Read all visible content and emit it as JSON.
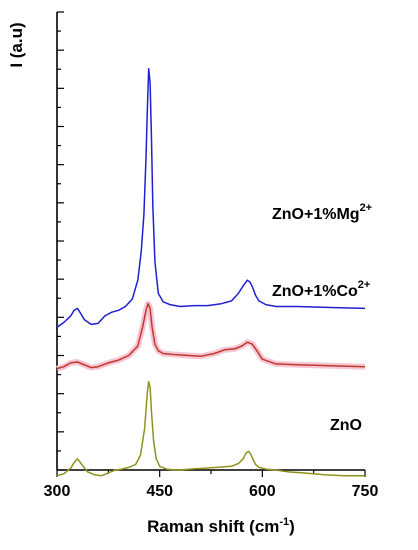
{
  "chart_data": {
    "type": "line",
    "title": "",
    "xlabel_main": "Raman shift (cm",
    "xlabel_sup": "-1",
    "xlabel_close": ")",
    "ylabel": "I (a.u)",
    "xlim": [
      300,
      750
    ],
    "x_ticks": [
      "300",
      "450",
      "600",
      "750"
    ],
    "x_tick_values": [
      300,
      450,
      600,
      750
    ],
    "grid": false,
    "legend": "none",
    "series": [
      {
        "name": "ZnO",
        "label_main": "ZnO",
        "label_sup": "",
        "color": "#8f931d",
        "x": [
          300,
          310,
          320,
          325,
          330,
          335,
          345,
          355,
          365,
          375,
          385,
          395,
          405,
          415,
          422,
          428,
          432,
          434,
          436,
          438,
          441,
          445,
          450,
          460,
          475,
          495,
          515,
          535,
          555,
          565,
          572,
          576,
          580,
          583,
          586,
          590,
          595,
          605,
          620,
          640,
          660,
          690,
          720,
          750
        ],
        "y": [
          0.12,
          0.14,
          0.2,
          0.26,
          0.3,
          0.25,
          0.16,
          0.13,
          0.12,
          0.15,
          0.18,
          0.19,
          0.21,
          0.24,
          0.34,
          0.62,
          1.0,
          1.12,
          1.06,
          0.8,
          0.5,
          0.3,
          0.22,
          0.19,
          0.18,
          0.19,
          0.2,
          0.21,
          0.22,
          0.25,
          0.3,
          0.36,
          0.38,
          0.35,
          0.3,
          0.24,
          0.21,
          0.19,
          0.18,
          0.16,
          0.15,
          0.13,
          0.12,
          0.12
        ]
      },
      {
        "name": "ZnO+1%Co2+",
        "label_main": "ZnO+1%Co",
        "label_sup": "2+",
        "color": "#c0392b",
        "x": [
          300,
          310,
          320,
          330,
          340,
          350,
          360,
          375,
          390,
          405,
          418,
          425,
          430,
          433,
          436,
          439,
          443,
          448,
          455,
          470,
          490,
          510,
          530,
          545,
          560,
          570,
          578,
          585,
          592,
          600,
          620,
          650,
          700,
          750
        ],
        "y": [
          1.26,
          1.28,
          1.32,
          1.33,
          1.3,
          1.27,
          1.28,
          1.32,
          1.35,
          1.4,
          1.5,
          1.7,
          1.88,
          1.95,
          1.9,
          1.7,
          1.52,
          1.45,
          1.42,
          1.41,
          1.4,
          1.39,
          1.42,
          1.46,
          1.47,
          1.5,
          1.54,
          1.52,
          1.45,
          1.36,
          1.31,
          1.3,
          1.29,
          1.28
        ]
      },
      {
        "name": "ZnO+1%Mg2+",
        "label_main": "ZnO+1%Mg",
        "label_sup": "2+",
        "color": "#2020d0",
        "x": [
          300,
          310,
          320,
          325,
          330,
          335,
          340,
          350,
          360,
          370,
          380,
          390,
          400,
          410,
          418,
          423,
          427,
          430,
          432,
          434,
          436,
          438,
          440,
          443,
          448,
          455,
          465,
          480,
          500,
          520,
          540,
          555,
          565,
          572,
          578,
          582,
          586,
          590,
          595,
          605,
          620,
          650,
          700,
          750
        ],
        "y": [
          1.7,
          1.75,
          1.82,
          1.88,
          1.9,
          1.84,
          1.78,
          1.73,
          1.74,
          1.82,
          1.86,
          1.88,
          1.92,
          2.0,
          2.2,
          2.5,
          2.9,
          3.5,
          4.0,
          4.45,
          4.3,
          3.7,
          3.0,
          2.4,
          2.06,
          1.97,
          1.94,
          1.92,
          1.93,
          1.93,
          1.95,
          1.98,
          2.06,
          2.14,
          2.2,
          2.18,
          2.12,
          2.04,
          1.98,
          1.94,
          1.92,
          1.92,
          1.91,
          1.9
        ]
      }
    ]
  }
}
